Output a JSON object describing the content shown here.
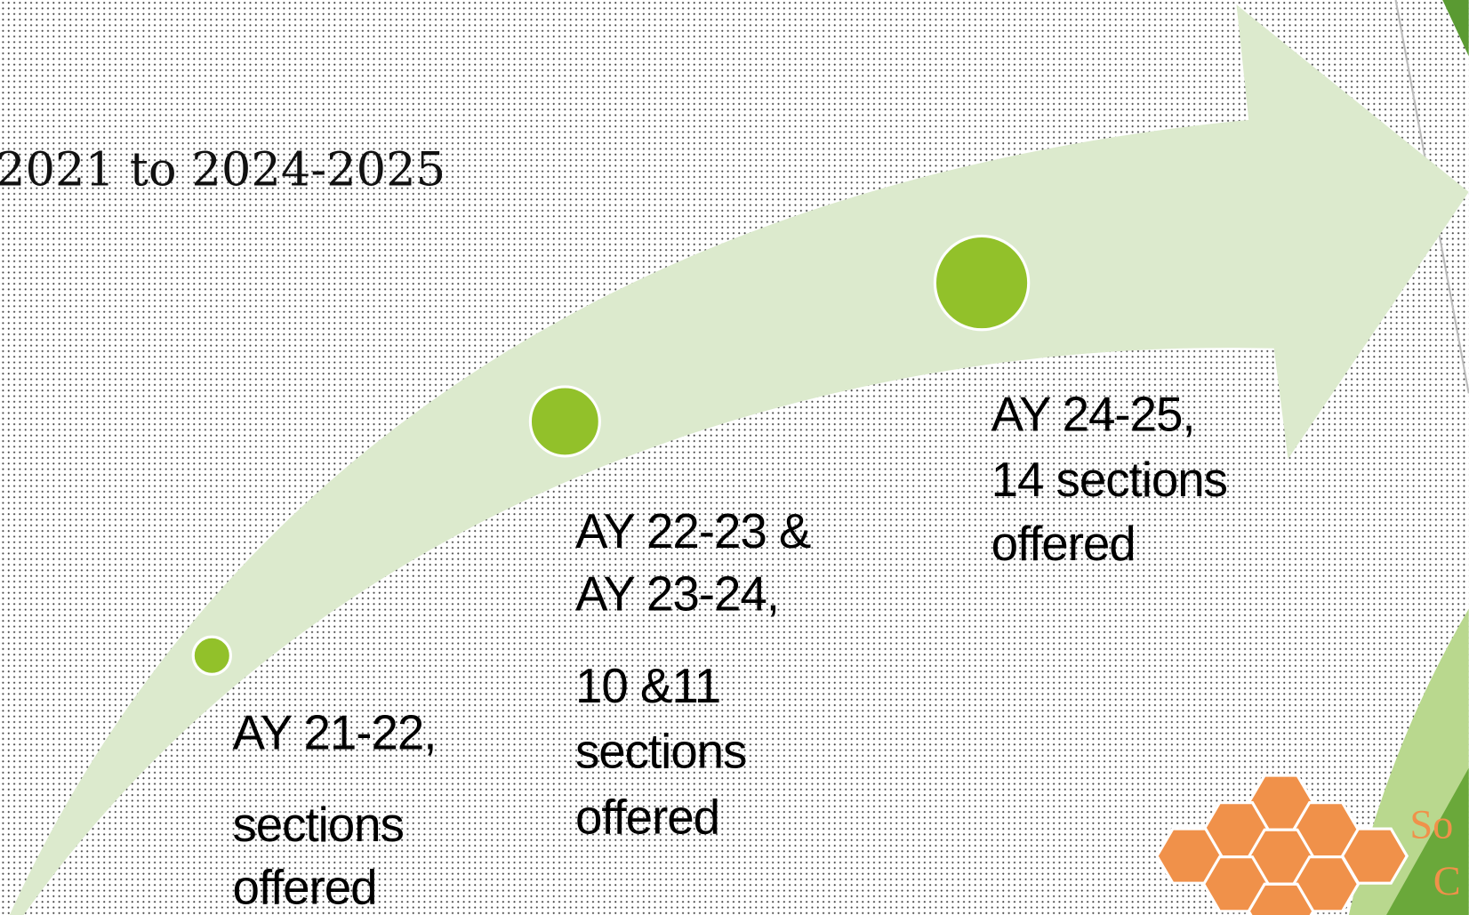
{
  "title": "2021 to 2024-2025",
  "milestones": [
    {
      "lines": [
        "AY 21-22,",
        "sections",
        "offered"
      ]
    },
    {
      "lines": [
        "AY 22-23 &",
        "AY 23-24,",
        "10 &11",
        "sections",
        "offered"
      ]
    },
    {
      "lines": [
        "AY 24-25,",
        "14 sections",
        "offered"
      ]
    }
  ],
  "logo": [
    "So",
    "C"
  ]
}
